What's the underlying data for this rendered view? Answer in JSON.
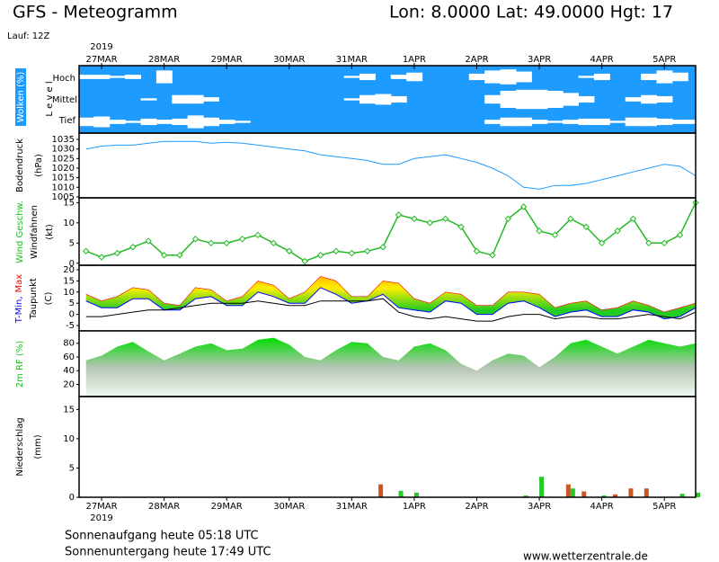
{
  "header": {
    "title": "GFS - Meteogramm",
    "location": "Lon: 8.0000 Lat: 49.0000 Hgt: 17",
    "run": "Lauf: 12Z",
    "year_top": "2019",
    "year_bottom": "2019"
  },
  "chart_data": [
    {
      "type": "cloud",
      "title": "Wolken (%)",
      "axis_label": "L e v e l",
      "background": "#1e9bff",
      "x": [
        -0.25,
        0,
        0.25,
        0.5,
        0.75,
        1,
        1.25,
        1.5,
        1.75,
        2,
        2.25,
        2.5,
        2.75,
        3,
        3.25,
        3.5,
        3.75,
        4,
        4.25,
        4.5,
        4.75,
        5,
        5.25,
        5.5,
        5.75,
        6,
        6.25,
        6.5,
        6.75,
        7,
        7.25,
        7.5,
        7.75,
        8,
        8.25,
        8.5,
        8.75,
        9,
        9.25,
        9.5
      ],
      "xlim": [
        -0.36,
        9.5
      ],
      "xticks": [
        {
          "value": 0,
          "label": "27MAR"
        },
        {
          "value": 1,
          "label": "28MAR"
        },
        {
          "value": 2,
          "label": "29MAR"
        },
        {
          "value": 3,
          "label": "30MAR"
        },
        {
          "value": 4,
          "label": "31MAR"
        },
        {
          "value": 5,
          "label": "1APR"
        },
        {
          "value": 6,
          "label": "2APR"
        },
        {
          "value": 7,
          "label": "3APR"
        },
        {
          "value": 8,
          "label": "4APR"
        },
        {
          "value": 9,
          "label": "5APR"
        }
      ],
      "series": [
        {
          "name": "Hoch",
          "color": "#ffffff",
          "values": [
            20,
            20,
            10,
            20,
            0,
            60,
            0,
            0,
            0,
            0,
            0,
            0,
            0,
            0,
            0,
            0,
            0,
            10,
            30,
            0,
            20,
            40,
            0,
            0,
            0,
            30,
            60,
            70,
            50,
            0,
            0,
            0,
            10,
            30,
            0,
            0,
            30,
            60,
            40,
            0
          ]
        },
        {
          "name": "Mittel",
          "color": "#ffffff",
          "values": [
            0,
            0,
            0,
            0,
            10,
            0,
            40,
            40,
            20,
            0,
            0,
            0,
            0,
            0,
            0,
            0,
            0,
            10,
            40,
            50,
            30,
            0,
            0,
            0,
            0,
            0,
            40,
            80,
            90,
            90,
            80,
            60,
            30,
            0,
            0,
            20,
            40,
            30,
            0,
            0
          ]
        },
        {
          "name": "Tief",
          "color": "#ffffff",
          "values": [
            40,
            50,
            20,
            10,
            30,
            20,
            30,
            60,
            40,
            20,
            10,
            0,
            0,
            0,
            0,
            0,
            0,
            0,
            0,
            0,
            0,
            0,
            0,
            0,
            0,
            0,
            20,
            40,
            40,
            20,
            10,
            20,
            30,
            30,
            10,
            40,
            40,
            30,
            20,
            20
          ]
        }
      ]
    },
    {
      "type": "line",
      "title": "Bodendruck",
      "unit": "(hPa)",
      "x": [
        -0.25,
        0,
        0.25,
        0.5,
        0.75,
        1,
        1.25,
        1.5,
        1.75,
        2,
        2.25,
        2.5,
        2.75,
        3,
        3.25,
        3.5,
        3.75,
        4,
        4.25,
        4.5,
        4.75,
        5,
        5.25,
        5.5,
        5.75,
        6,
        6.25,
        6.5,
        6.75,
        7,
        7.25,
        7.5,
        7.75,
        8,
        8.25,
        8.5,
        8.75,
        9,
        9.25,
        9.5
      ],
      "xlim": [
        -0.36,
        9.5
      ],
      "ylim": [
        1004.5,
        1038.3
      ],
      "yticks": [
        1005,
        1010,
        1015,
        1020,
        1025,
        1030,
        1035
      ],
      "series": [
        {
          "color": "#1e9bff",
          "values": [
            1030,
            1031.5,
            1032,
            1032,
            1033,
            1034,
            1034,
            1034,
            1033,
            1033.5,
            1033,
            1032,
            1031,
            1030,
            1029,
            1027,
            1026,
            1025,
            1024,
            1022,
            1022,
            1025,
            1026,
            1027,
            1025,
            1023,
            1020,
            1016,
            1010,
            1009,
            1011,
            1011,
            1012,
            1014,
            1016,
            1018,
            1020,
            1022,
            1021,
            1016
          ]
        }
      ]
    },
    {
      "type": "line_markers",
      "title": "Windfahnen",
      "unit": "(kt)",
      "x": [
        -0.25,
        0,
        0.25,
        0.5,
        0.75,
        1,
        1.25,
        1.5,
        1.75,
        2,
        2.25,
        2.5,
        2.75,
        3,
        3.25,
        3.5,
        3.75,
        4,
        4.25,
        4.5,
        4.75,
        5,
        5.25,
        5.5,
        5.75,
        6,
        6.25,
        6.5,
        6.75,
        7,
        7.25,
        7.5,
        7.75,
        8,
        8.25,
        8.5,
        8.75,
        9,
        9.25,
        9.5
      ],
      "xlim": [
        -0.36,
        9.5
      ],
      "ylim": [
        -0.5,
        16.2
      ],
      "yticks": [
        0,
        5,
        10,
        15
      ],
      "series": [
        {
          "name": "Wind Geschw.",
          "color": "#22bb22",
          "values": [
            3,
            1.5,
            2.5,
            4,
            5.5,
            2,
            2,
            6,
            5,
            5,
            6,
            7,
            5,
            3,
            0.5,
            2,
            3,
            2.5,
            3,
            4,
            12,
            11,
            10,
            11,
            9,
            3,
            2,
            11,
            14,
            8,
            7,
            11,
            9,
            5,
            8,
            11,
            5,
            5,
            7,
            15
          ]
        }
      ]
    },
    {
      "type": "temperature",
      "unit": "(C)",
      "x": [
        -0.25,
        0,
        0.25,
        0.5,
        0.75,
        1,
        1.25,
        1.5,
        1.75,
        2,
        2.25,
        2.5,
        2.75,
        3,
        3.25,
        3.5,
        3.75,
        4,
        4.25,
        4.5,
        4.75,
        5,
        5.25,
        5.5,
        5.75,
        6,
        6.25,
        6.5,
        6.75,
        7,
        7.25,
        7.5,
        7.75,
        8,
        8.25,
        8.5,
        8.75,
        9,
        9.25,
        9.5
      ],
      "xlim": [
        -0.36,
        9.5
      ],
      "ylim": [
        -7.4,
        22
      ],
      "yticks": [
        -5,
        0,
        5,
        10,
        15,
        20
      ],
      "series": [
        {
          "name": "T-Min,",
          "color": "#0000ff",
          "values": [
            6,
            3,
            3,
            7,
            7,
            2,
            2,
            7,
            8,
            4,
            4,
            10,
            8,
            5,
            5,
            12,
            9,
            5,
            6,
            9,
            3,
            2,
            1,
            6,
            5,
            0,
            0,
            5,
            6,
            3,
            -1,
            1,
            2,
            -1,
            -1,
            2,
            1,
            -2,
            -1,
            3
          ]
        },
        {
          "name": "Max",
          "color": "#ff0000",
          "values": [
            9,
            6,
            8,
            12,
            11,
            5,
            4,
            12,
            11,
            6,
            8,
            15,
            13,
            7,
            10,
            17,
            15,
            8,
            8,
            15,
            14,
            7,
            5,
            10,
            9,
            4,
            4,
            10,
            10,
            9,
            3,
            5,
            6,
            2,
            3,
            6,
            4,
            1,
            3,
            5
          ]
        },
        {
          "name": "Taupunkt",
          "color": "#000000",
          "values": [
            -1,
            -1,
            0,
            1,
            2,
            2,
            3,
            4,
            5,
            5,
            5,
            6,
            5,
            4,
            4,
            6,
            6,
            6,
            6,
            7,
            1,
            -1,
            -2,
            -1,
            -2,
            -3,
            -3,
            -1,
            0,
            0,
            -2,
            -1,
            -1,
            -2,
            -2,
            -1,
            0,
            -1,
            -2,
            1
          ]
        }
      ]
    },
    {
      "type": "area",
      "x": [
        -0.25,
        0,
        0.25,
        0.5,
        0.75,
        1,
        1.25,
        1.5,
        1.75,
        2,
        2.25,
        2.5,
        2.75,
        3,
        3.25,
        3.5,
        3.75,
        4,
        4.25,
        4.5,
        4.75,
        5,
        5.25,
        5.5,
        5.75,
        6,
        6.25,
        6.5,
        6.75,
        7,
        7.25,
        7.5,
        7.75,
        8,
        8.25,
        8.5,
        8.75,
        9,
        9.25,
        9.5
      ],
      "xlim": [
        -0.36,
        9.5
      ],
      "ylim": [
        2.3,
        98
      ],
      "yticks": [
        20,
        40,
        60,
        80
      ],
      "series": [
        {
          "name": "2m RF (%)",
          "color": "#00dd00",
          "values": [
            55,
            62,
            75,
            82,
            68,
            55,
            65,
            75,
            80,
            70,
            72,
            85,
            88,
            78,
            60,
            55,
            70,
            82,
            80,
            60,
            55,
            75,
            80,
            70,
            50,
            40,
            55,
            65,
            62,
            45,
            60,
            80,
            85,
            75,
            65,
            75,
            85,
            80,
            75,
            80
          ]
        }
      ]
    },
    {
      "type": "bar",
      "title": "Niederschlag",
      "unit": "(mm)",
      "x": [
        -0.25,
        0,
        0.25,
        0.5,
        0.75,
        1,
        1.25,
        1.5,
        1.75,
        2,
        2.25,
        2.5,
        2.75,
        3,
        3.25,
        3.5,
        3.75,
        4,
        4.25,
        4.5,
        4.75,
        5,
        5.25,
        5.5,
        5.75,
        6,
        6.25,
        6.5,
        6.75,
        7,
        7.25,
        7.5,
        7.75,
        8,
        8.25,
        8.5,
        8.75,
        9,
        9.25,
        9.5
      ],
      "xlim": [
        -0.36,
        9.5
      ],
      "ylim": [
        0,
        17.2
      ],
      "yticks": [
        0,
        5,
        10,
        15
      ],
      "xticks": [
        {
          "value": 0,
          "label": "27MAR"
        },
        {
          "value": 1,
          "label": "28MAR"
        },
        {
          "value": 2,
          "label": "29MAR"
        },
        {
          "value": 3,
          "label": "30MAR"
        },
        {
          "value": 4,
          "label": "31MAR"
        },
        {
          "value": 5,
          "label": "1APR"
        },
        {
          "value": 6,
          "label": "2APR"
        },
        {
          "value": 7,
          "label": "3APR"
        },
        {
          "value": 8,
          "label": "4APR"
        },
        {
          "value": 9,
          "label": "5APR"
        }
      ],
      "series": [
        {
          "color": "#cc5522",
          "values": [
            0,
            0,
            0,
            0,
            0,
            0,
            0,
            0,
            0,
            0,
            0,
            0,
            0,
            0,
            0,
            0,
            0,
            0,
            0,
            2.2,
            0,
            0,
            0,
            0,
            0,
            0,
            0,
            0,
            0,
            0,
            0,
            2.2,
            1.0,
            0,
            0.5,
            1.5,
            1.5,
            0,
            0,
            0
          ]
        },
        {
          "color": "#22cc22",
          "values": [
            0,
            0,
            0,
            0,
            0,
            0,
            0,
            0,
            0,
            0,
            0,
            0,
            0,
            0,
            0,
            0,
            0,
            0,
            0,
            0,
            1.1,
            0.8,
            0,
            0,
            0,
            0,
            0,
            0,
            0.3,
            3.5,
            0,
            1.5,
            0,
            0.3,
            0,
            0,
            0,
            0,
            0.6,
            0.8
          ]
        }
      ]
    }
  ],
  "footer": {
    "sunrise": "Sonnenaufgang heute 05:18 UTC",
    "sunset": "Sonnenuntergang heute 17:49 UTC",
    "source": "www.wetterzentrale.de"
  }
}
